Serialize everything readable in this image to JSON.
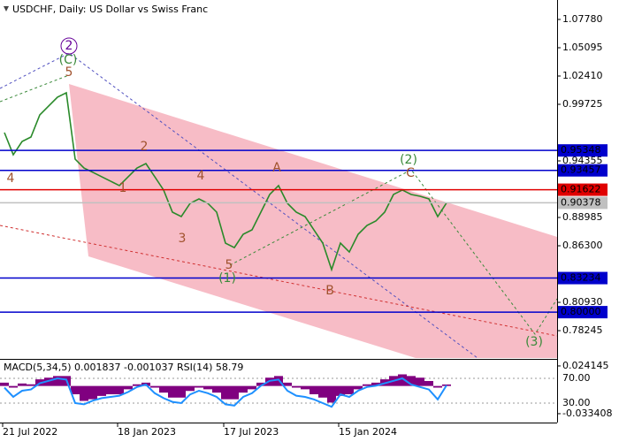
{
  "chart_data": [
    {
      "type": "line",
      "title": "USDCHF, Daily:  US Dollar vs Swiss Franc",
      "categories": [
        "21 Jul 2022",
        null,
        null,
        null,
        null,
        null,
        null,
        null,
        null,
        null,
        null,
        null,
        null,
        "18 Jan 2023",
        null,
        null,
        null,
        null,
        null,
        null,
        null,
        null,
        null,
        null,
        null,
        "17 Jul 2023",
        null,
        null,
        null,
        null,
        null,
        null,
        null,
        null,
        null,
        null,
        null,
        null,
        "15 Jan 2024",
        null,
        null,
        null,
        null,
        null,
        null,
        null,
        null,
        null,
        null,
        null,
        null
      ],
      "values": [
        0.9704,
        0.9494,
        0.962,
        0.9662,
        0.9872,
        0.9956,
        1.004,
        1.0082,
        0.9452,
        0.9368,
        0.9327,
        0.9285,
        0.9243,
        0.9201,
        0.9285,
        0.9368,
        0.941,
        0.9285,
        0.9159,
        0.8949,
        0.8907,
        0.9033,
        0.9075,
        0.9033,
        0.8949,
        0.8655,
        0.8613,
        0.8739,
        0.8781,
        0.8949,
        0.9117,
        0.9201,
        0.9033,
        0.8949,
        0.8907,
        0.8781,
        0.8655,
        0.8404,
        0.8655,
        0.8571,
        0.8739,
        0.8823,
        0.8865,
        0.8949,
        0.9117,
        0.9159,
        0.9117,
        0.91,
        0.9075,
        0.8907,
        0.9038
      ],
      "color": "#2a8a2a",
      "ylim": [
        0.75646,
        1.09458
      ],
      "yticks": [
        {
          "value": 1.0778,
          "label": "1.07780"
        },
        1.05095,
        {
          "value": 1.0241,
          "label": "1.02410"
        },
        0.99725,
        0.94355,
        0.88985,
        {
          "value": 0.863,
          "label": "0.86300"
        },
        {
          "value": 0.8093,
          "label": "0.80930"
        },
        0.78245
      ],
      "levels": [
        {
          "value": 0.95348,
          "label": "0.95348",
          "color": "#0000cc"
        },
        {
          "value": 0.93457,
          "label": "0.93457",
          "color": "#0000cc"
        },
        {
          "value": 0.91622,
          "label": "0.91622",
          "color": "#e00000"
        },
        {
          "value": 0.90378,
          "label": "0.90378",
          "color": "#c0c0c0"
        },
        {
          "value": 0.83234,
          "label": "0.83234",
          "color": "#0000cc"
        },
        {
          "value": 0.8,
          "label": "0.80000",
          "color": "#0000cc"
        }
      ],
      "annotations": [
        {
          "text": "5",
          "color": "#a0522d"
        },
        {
          "text": "(C)",
          "color": "#3a8a3a"
        },
        {
          "text": "2",
          "color": "#660099"
        },
        {
          "text": "4",
          "color": "#a0522d"
        },
        {
          "text": "2",
          "color": "#a0522d"
        },
        {
          "text": "1",
          "color": "#a0522d"
        },
        {
          "text": "4",
          "color": "#a0522d"
        },
        {
          "text": "3",
          "color": "#a0522d"
        },
        {
          "text": "5",
          "color": "#a0522d"
        },
        {
          "text": "(1)",
          "color": "#3a8a3a"
        },
        {
          "text": "A",
          "color": "#a0522d"
        },
        {
          "text": "B",
          "color": "#a0522d"
        },
        {
          "text": "C",
          "color": "#a0522d"
        },
        {
          "text": "(2)",
          "color": "#3a8a3a"
        },
        {
          "text": "(3)",
          "color": "#3a8a3a"
        }
      ]
    },
    {
      "type": "indicator",
      "title": "MACD(5,34,5) 0.001837 -0.001037 RSI(14) 58.79",
      "ylim": [
        -0.0441,
        0.0305
      ],
      "yticks": [
        0.024145,
        -0.033408
      ],
      "y2lim": [
        -1.43,
        98.57
      ],
      "y2ticks": [
        {
          "value": 70,
          "label": "70.00"
        },
        {
          "value": 30,
          "label": "30.00"
        }
      ],
      "series": [
        {
          "type": "bar",
          "color": "#800080",
          "values": [
            0.004,
            -0.002,
            0.003,
            0.002,
            0.008,
            0.01,
            0.012,
            0.012,
            -0.01,
            -0.018,
            -0.016,
            -0.012,
            -0.01,
            -0.01,
            -0.004,
            0.002,
            0.004,
            -0.002,
            -0.008,
            -0.014,
            -0.014,
            -0.006,
            -0.002,
            -0.004,
            -0.008,
            -0.016,
            -0.016,
            -0.008,
            -0.004,
            0.004,
            0.01,
            0.012,
            0.004,
            -0.002,
            -0.004,
            -0.01,
            -0.014,
            -0.02,
            -0.012,
            -0.01,
            -0.004,
            0.002,
            0.004,
            0.008,
            0.012,
            0.014,
            0.012,
            0.01,
            0.006,
            -0.002,
            0.0018
          ]
        },
        {
          "type": "line",
          "color": "#1e90ff",
          "axis": "y2",
          "values": [
            55,
            40,
            50,
            52,
            62,
            66,
            70,
            68,
            30,
            28,
            34,
            38,
            40,
            42,
            48,
            56,
            60,
            46,
            38,
            32,
            30,
            44,
            50,
            46,
            40,
            28,
            26,
            40,
            46,
            58,
            66,
            68,
            50,
            42,
            40,
            36,
            30,
            24,
            44,
            40,
            50,
            56,
            58,
            62,
            66,
            70,
            60,
            56,
            52,
            36,
            58.79
          ]
        }
      ]
    }
  ]
}
